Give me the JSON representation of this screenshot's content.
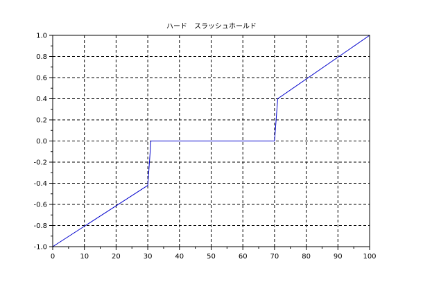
{
  "chart_data": {
    "type": "line",
    "title": "ハード　スラッシュホールド",
    "xlabel": "",
    "ylabel": "",
    "xlim": [
      0,
      100
    ],
    "ylim": [
      -1.0,
      1.0
    ],
    "grid": true,
    "x_ticks": [
      0,
      10,
      20,
      30,
      40,
      50,
      60,
      70,
      80,
      90,
      100
    ],
    "y_ticks": [
      -1.0,
      -0.8,
      -0.6,
      -0.4,
      -0.2,
      0.0,
      0.2,
      0.4,
      0.6,
      0.8,
      1.0
    ],
    "x_tick_labels": [
      "0",
      "10",
      "20",
      "30",
      "40",
      "50",
      "60",
      "70",
      "80",
      "90",
      "100"
    ],
    "y_tick_labels": [
      "-1.0",
      "-0.8",
      "-0.6",
      "-0.4",
      "-0.2",
      "0.0",
      "0.2",
      "0.4",
      "0.6",
      "0.8",
      "1.0"
    ],
    "series": [
      {
        "color": "#0000cc",
        "x": [
          0,
          30,
          31,
          70,
          71,
          100
        ],
        "y": [
          -1.0,
          -0.42,
          0.0,
          0.0,
          0.4,
          1.0
        ]
      }
    ]
  }
}
